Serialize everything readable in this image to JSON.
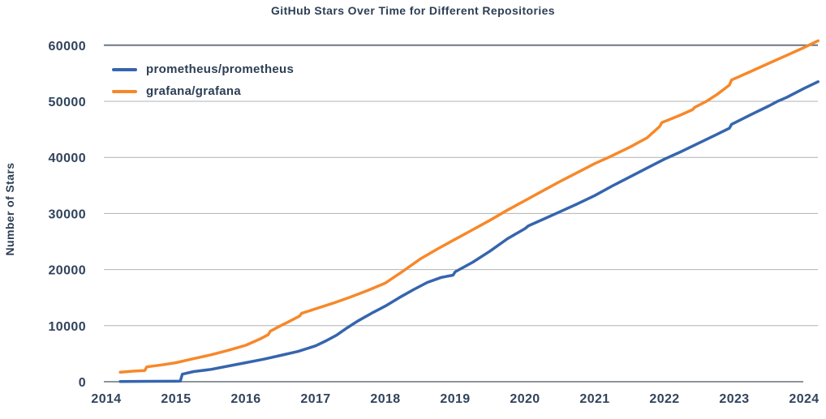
{
  "title": "GitHub Stars Over Time for Different Repositories",
  "colors": {
    "text": "#2d3e54",
    "grid_inner": "#b0b3b6",
    "grid_top": "#6b7687",
    "axis_bottom": "#8d949c",
    "background": "#ffffff",
    "prometheus_blue": "#3565ae",
    "grafana_orange": "#f78829"
  },
  "chart_data": {
    "type": "line",
    "title": "GitHub Stars Over Time for Different Repositories",
    "xlabel": "",
    "ylabel": "Number of Stars",
    "xlim": [
      2014,
      2024.3
    ],
    "ylim": [
      0,
      60000
    ],
    "x_ticks": [
      2014,
      2015,
      2016,
      2017,
      2018,
      2019,
      2020,
      2021,
      2022,
      2023,
      2024
    ],
    "y_ticks": [
      0,
      10000,
      20000,
      30000,
      40000,
      50000,
      60000
    ],
    "grid": true,
    "legend_position": "top-left",
    "series": [
      {
        "name": "prometheus/prometheus",
        "color": "#3565ae",
        "points": [
          [
            2014.2,
            40
          ],
          [
            2014.6,
            70
          ],
          [
            2015.0,
            90
          ],
          [
            2015.06,
            100
          ],
          [
            2015.09,
            1350
          ],
          [
            2015.25,
            1800
          ],
          [
            2015.5,
            2200
          ],
          [
            2015.75,
            2800
          ],
          [
            2016.0,
            3400
          ],
          [
            2016.25,
            4000
          ],
          [
            2016.5,
            4700
          ],
          [
            2016.75,
            5400
          ],
          [
            2017.0,
            6400
          ],
          [
            2017.15,
            7300
          ],
          [
            2017.3,
            8300
          ],
          [
            2017.45,
            9600
          ],
          [
            2017.6,
            10800
          ],
          [
            2017.8,
            12200
          ],
          [
            2018.0,
            13500
          ],
          [
            2018.2,
            15000
          ],
          [
            2018.4,
            16400
          ],
          [
            2018.6,
            17700
          ],
          [
            2018.8,
            18600
          ],
          [
            2018.97,
            19000
          ],
          [
            2019.0,
            19600
          ],
          [
            2019.25,
            21300
          ],
          [
            2019.5,
            23300
          ],
          [
            2019.75,
            25500
          ],
          [
            2020.0,
            27300
          ],
          [
            2020.05,
            27800
          ],
          [
            2020.25,
            28900
          ],
          [
            2020.5,
            30300
          ],
          [
            2020.75,
            31700
          ],
          [
            2021.0,
            33200
          ],
          [
            2021.25,
            34900
          ],
          [
            2021.5,
            36500
          ],
          [
            2021.75,
            38100
          ],
          [
            2022.0,
            39700
          ],
          [
            2022.25,
            41100
          ],
          [
            2022.5,
            42600
          ],
          [
            2022.75,
            44100
          ],
          [
            2022.93,
            45200
          ],
          [
            2022.96,
            45900
          ],
          [
            2023.25,
            47700
          ],
          [
            2023.5,
            49200
          ],
          [
            2023.62,
            50000
          ],
          [
            2023.75,
            50700
          ],
          [
            2024.0,
            52300
          ],
          [
            2024.2,
            53500
          ]
        ]
      },
      {
        "name": "grafana/grafana",
        "color": "#f78829",
        "points": [
          [
            2014.2,
            1700
          ],
          [
            2014.4,
            1900
          ],
          [
            2014.55,
            2000
          ],
          [
            2014.58,
            2650
          ],
          [
            2014.8,
            3000
          ],
          [
            2015.0,
            3400
          ],
          [
            2015.25,
            4100
          ],
          [
            2015.5,
            4800
          ],
          [
            2015.75,
            5600
          ],
          [
            2016.0,
            6500
          ],
          [
            2016.2,
            7600
          ],
          [
            2016.32,
            8400
          ],
          [
            2016.35,
            9000
          ],
          [
            2016.5,
            10000
          ],
          [
            2016.6,
            10600
          ],
          [
            2016.77,
            11700
          ],
          [
            2016.8,
            12200
          ],
          [
            2017.0,
            13000
          ],
          [
            2017.25,
            14000
          ],
          [
            2017.5,
            15100
          ],
          [
            2017.75,
            16300
          ],
          [
            2018.0,
            17600
          ],
          [
            2018.25,
            19700
          ],
          [
            2018.5,
            21900
          ],
          [
            2018.75,
            23700
          ],
          [
            2019.0,
            25400
          ],
          [
            2019.25,
            27100
          ],
          [
            2019.5,
            28800
          ],
          [
            2019.75,
            30600
          ],
          [
            2020.0,
            32300
          ],
          [
            2020.25,
            34000
          ],
          [
            2020.5,
            35700
          ],
          [
            2020.75,
            37300
          ],
          [
            2021.0,
            38900
          ],
          [
            2021.25,
            40300
          ],
          [
            2021.5,
            41800
          ],
          [
            2021.75,
            43500
          ],
          [
            2021.93,
            45500
          ],
          [
            2021.96,
            46200
          ],
          [
            2022.2,
            47400
          ],
          [
            2022.4,
            48500
          ],
          [
            2022.43,
            48900
          ],
          [
            2022.6,
            50000
          ],
          [
            2022.75,
            51200
          ],
          [
            2022.93,
            52900
          ],
          [
            2022.96,
            53800
          ],
          [
            2023.25,
            55400
          ],
          [
            2023.5,
            56800
          ],
          [
            2023.75,
            58200
          ],
          [
            2024.0,
            59600
          ],
          [
            2024.2,
            60800
          ]
        ]
      }
    ]
  }
}
